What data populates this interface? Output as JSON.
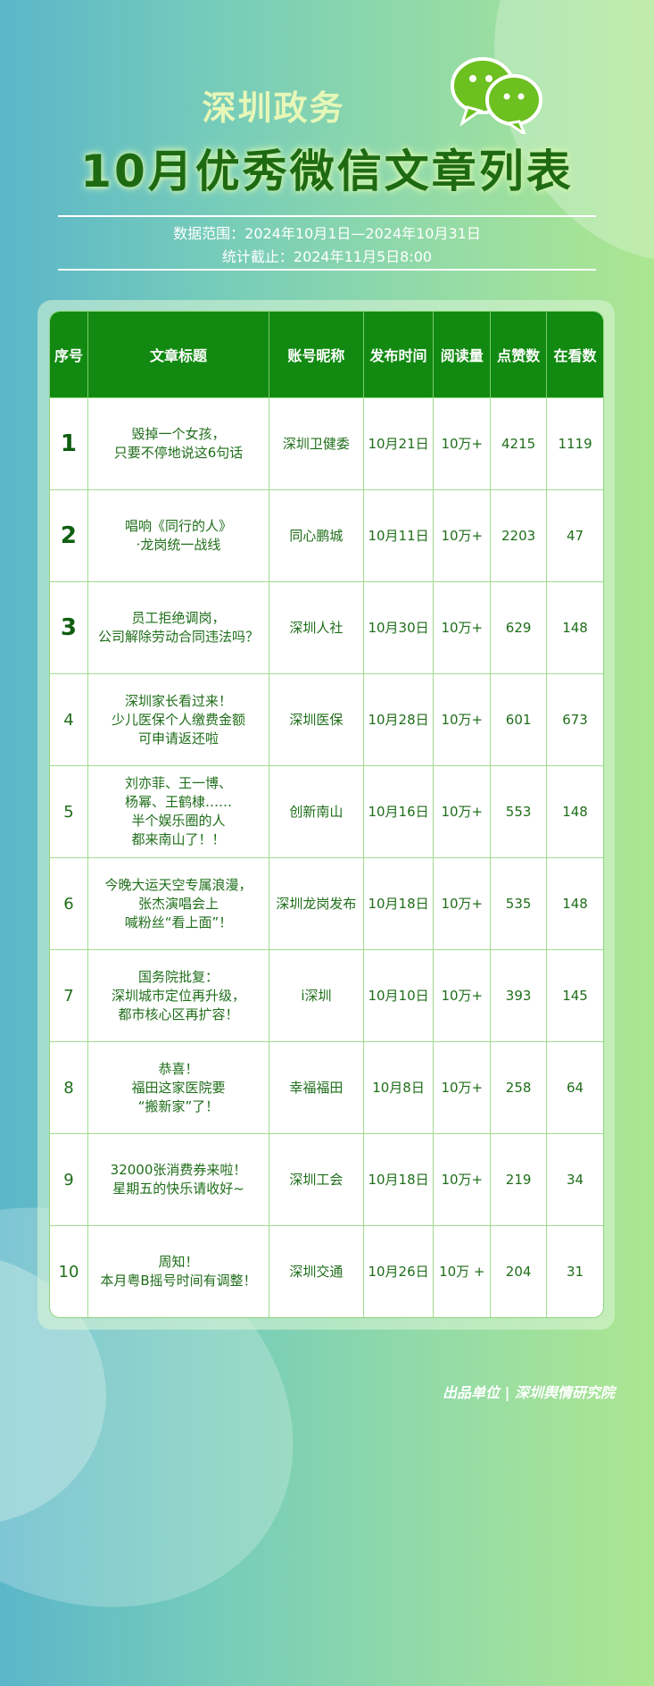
{
  "header": {
    "title_line1": "深圳政务",
    "title_line2": "10月优秀微信文章列表",
    "data_range": "数据范围：2024年10月1日—2024年10月31日",
    "cutoff": "统计截止：2024年11月5日8:00",
    "logo_icon": "wechat-icon"
  },
  "colors": {
    "header_bg": "#128a12",
    "text": "#1f6e1a",
    "border": "#9fdc8f"
  },
  "table": {
    "columns": [
      "序号",
      "文章标题",
      "账号昵称",
      "发布时间",
      "阅读量",
      "点赞数",
      "在看数"
    ],
    "rows": [
      {
        "rank": "1",
        "title": "毁掉一个女孩，\n只要不停地说这6句话",
        "account": "深圳卫健委",
        "date": "10月21日",
        "reads": "10万+",
        "likes": "4215",
        "watching": "1119"
      },
      {
        "rank": "2",
        "title": "唱响《同行的人》\n·龙岗统一战线",
        "account": "同心鹏城",
        "date": "10月11日",
        "reads": "10万+",
        "likes": "2203",
        "watching": "47"
      },
      {
        "rank": "3",
        "title": "员工拒绝调岗，\n公司解除劳动合同违法吗？",
        "account": "深圳人社",
        "date": "10月30日",
        "reads": "10万+",
        "likes": "629",
        "watching": "148"
      },
      {
        "rank": "4",
        "title": "深圳家长看过来！\n少儿医保个人缴费金额\n可申请返还啦",
        "account": "深圳医保",
        "date": "10月28日",
        "reads": "10万+",
        "likes": "601",
        "watching": "673"
      },
      {
        "rank": "5",
        "title": "刘亦菲、王一博、\n杨幂、王鹤棣……\n半个娱乐圈的人\n都来南山了！！",
        "account": "创新南山",
        "date": "10月16日",
        "reads": "10万+",
        "likes": "553",
        "watching": "148"
      },
      {
        "rank": "6",
        "title": "今晚大运天空专属浪漫，\n张杰演唱会上\n喊粉丝“看上面”！",
        "account": "深圳龙岗发布",
        "date": "10月18日",
        "reads": "10万+",
        "likes": "535",
        "watching": "148"
      },
      {
        "rank": "7",
        "title": "国务院批复：\n深圳城市定位再升级，\n都市核心区再扩容！",
        "account": "i深圳",
        "date": "10月10日",
        "reads": "10万+",
        "likes": "393",
        "watching": "145"
      },
      {
        "rank": "8",
        "title": "恭喜！\n福田这家医院要\n“搬新家”了！",
        "account": "幸福福田",
        "date": "10月8日",
        "reads": "10万+",
        "likes": "258",
        "watching": "64"
      },
      {
        "rank": "9",
        "title": "32000张消费券来啦！\n星期五的快乐请收好~",
        "account": "深圳工会",
        "date": "10月18日",
        "reads": "10万+",
        "likes": "219",
        "watching": "34"
      },
      {
        "rank": "10",
        "title": "周知！\n本月粤B摇号时间有调整！",
        "account": "深圳交通",
        "date": "10月26日",
        "reads": "10万 +",
        "likes": "204",
        "watching": "31"
      }
    ]
  },
  "footer": "出品单位 | 深圳舆情研究院"
}
